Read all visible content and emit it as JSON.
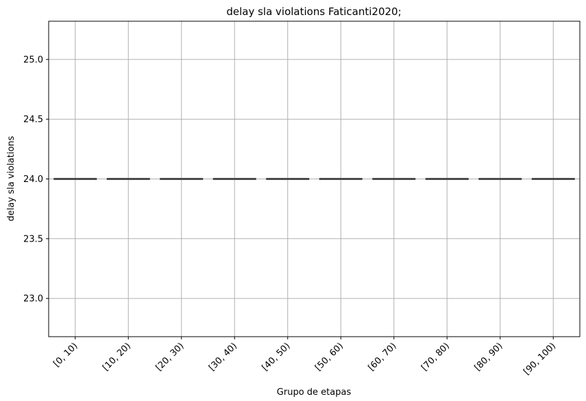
{
  "chart_data": {
    "type": "box",
    "title": "delay sla violations Faticanti2020;",
    "xlabel": "Grupo de etapas",
    "ylabel": "delay sla violations",
    "categories": [
      "[0, 10)",
      "[10, 20)",
      "[20, 30)",
      "[30, 40)",
      "[40, 50)",
      "[50, 60)",
      "[60, 70)",
      "[70, 80)",
      "[80, 90)",
      "[90, 100)"
    ],
    "values": [
      24.0,
      24.0,
      24.0,
      24.0,
      24.0,
      24.0,
      24.0,
      24.0,
      24.0,
      24.0
    ],
    "ylim": [
      22.68,
      25.32
    ],
    "yticks": [
      23.0,
      23.5,
      24.0,
      24.5,
      25.0
    ],
    "ytick_labels": [
      "23.0",
      "23.5",
      "24.0",
      "24.5",
      "25.0"
    ],
    "grid": true,
    "colors": {
      "box_edge": "#4a4a4a",
      "grid": "#b0b0b0",
      "axes": "#000000"
    }
  }
}
